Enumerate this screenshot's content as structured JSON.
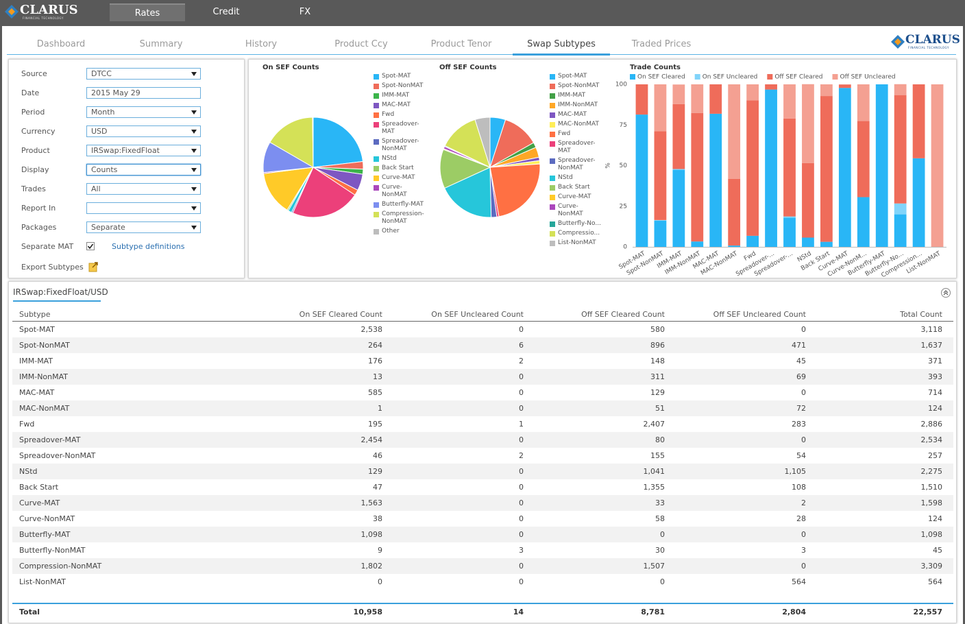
{
  "header": {
    "logo": "CLARUS",
    "logo_tagline": "FINANCIAL TECHNOLOGY",
    "nav": [
      "Rates",
      "Credit",
      "FX"
    ],
    "tabs": [
      "Dashboard",
      "Summary",
      "History",
      "Product Ccy",
      "Product Tenor",
      "Swap Subtypes",
      "Traded Prices"
    ]
  },
  "form": {
    "fields": [
      {
        "label": "Source",
        "value": "DTCC"
      },
      {
        "label": "Date",
        "value": "2015 May 29"
      },
      {
        "label": "Period",
        "value": "Month"
      },
      {
        "label": "Currency",
        "value": "USD"
      },
      {
        "label": "Product",
        "value": "IRSwap:FixedFloat"
      },
      {
        "label": "Display",
        "value": "Counts"
      },
      {
        "label": "Trades",
        "value": "All"
      },
      {
        "label": "Report In"
      },
      {
        "label": "Packages",
        "value": "Separate"
      }
    ],
    "separate_mat": "Separate MAT",
    "link": "Subtype definitions",
    "export": "Export Subtypes"
  },
  "chart_data": [
    {
      "type": "pie",
      "title": "On SEF Counts",
      "categories": [
        "Spot-MAT",
        "Spot-NonMAT",
        "IMM-MAT",
        "MAC-MAT",
        "Fwd",
        "Spreadover-MAT",
        "Spreadover-NonMAT",
        "NStd",
        "Back Start",
        "Curve-MAT",
        "Curve-NonMAT",
        "Butterfly-MAT",
        "Compression-NonMAT",
        "Other"
      ],
      "values": [
        2538,
        270,
        178,
        585,
        196,
        2454,
        48,
        129,
        47,
        1563,
        38,
        1098,
        1802,
        26
      ],
      "colors": [
        "#29b6f6",
        "#ef6c5a",
        "#3cb44b",
        "#7e57c2",
        "#ff7043",
        "#ec407a",
        "#5c6bc0",
        "#26c6da",
        "#9ccc65",
        "#ffca28",
        "#ab47bc",
        "#7c8ef0",
        "#d4e157",
        "#bdbdbd"
      ]
    },
    {
      "type": "pie",
      "title": "Off SEF Counts",
      "categories": [
        "Spot-MAT",
        "Spot-NonMAT",
        "IMM-MAT",
        "IMM-NonMAT",
        "MAC-MAT",
        "MAC-NonMAT",
        "Fwd",
        "Spreadover-MAT",
        "Spreadover-NonMAT",
        "NStd",
        "Back Start",
        "Curve-MAT",
        "Curve-NonMAT",
        "Butterfly-No...",
        "Compressio...",
        "List-NonMAT"
      ],
      "values": [
        580,
        1367,
        193,
        380,
        129,
        123,
        2690,
        80,
        209,
        2146,
        1463,
        35,
        86,
        33,
        1507,
        564
      ],
      "colors": [
        "#29b6f6",
        "#ef6c5a",
        "#43a047",
        "#ffa726",
        "#7e57c2",
        "#ffee58",
        "#ff7043",
        "#ec407a",
        "#5c6bc0",
        "#26c6da",
        "#9ccc65",
        "#ffca28",
        "#ab47bc",
        "#26a69a",
        "#d4e157",
        "#bdbdbd"
      ]
    },
    {
      "type": "bar",
      "stacked": true,
      "title": "Trade Counts",
      "ylabel": "%",
      "legend": "top",
      "grid": false,
      "categories": [
        "Spot-MAT",
        "Spot-NonMAT",
        "IMM-MAT",
        "IMM-NonMAT",
        "MAC-MAT",
        "MAC-NonMAT",
        "Fwd",
        "Spreadover-...",
        "Spreadover-...",
        "NStd",
        "Back Start",
        "Curve-MAT",
        "Curve-NonM...",
        "Butterfly-MAT",
        "Butterfly-No...",
        "Compression...",
        "List-NonMAT"
      ],
      "series": [
        {
          "name": "On SEF Cleared",
          "color": "#29b6f6",
          "values": [
            81.4,
            16.1,
            47.4,
            3.3,
            81.9,
            0.8,
            6.8,
            96.8,
            17.9,
            5.7,
            3.1,
            97.8,
            30.6,
            100,
            20,
            54.5,
            0
          ]
        },
        {
          "name": "On SEF Uncleared",
          "color": "#81d4fa",
          "values": [
            0,
            0.4,
            0.5,
            0,
            0,
            0,
            0,
            0,
            0.8,
            0,
            0,
            0,
            0,
            0,
            6.7,
            0,
            0
          ]
        },
        {
          "name": "Off SEF Cleared",
          "color": "#ef6c5a",
          "values": [
            18.6,
            54.7,
            39.9,
            79.1,
            18.1,
            41.1,
            83.4,
            3.2,
            60.3,
            45.8,
            89.7,
            2.1,
            46.8,
            0,
            66.7,
            45.5,
            0
          ]
        },
        {
          "name": "Off SEF Uncleared",
          "color": "#f4a092",
          "values": [
            0,
            28.8,
            12.1,
            17.6,
            0,
            58.1,
            9.8,
            0,
            21.0,
            48.6,
            7.2,
            0.1,
            22.6,
            0,
            6.7,
            0,
            100
          ]
        }
      ],
      "ylim": [
        0,
        100
      ],
      "yticks": [
        0,
        25,
        50,
        75,
        100
      ]
    }
  ],
  "table": {
    "title": "IRSwap:FixedFloat/USD",
    "columns": [
      "Subtype",
      "On SEF Cleared Count",
      "On SEF Uncleared Count",
      "Off SEF Cleared Count",
      "Off SEF Uncleared Count",
      "Total Count"
    ],
    "rows": [
      [
        "Spot-MAT",
        "2,538",
        "0",
        "580",
        "0",
        "3,118"
      ],
      [
        "Spot-NonMAT",
        "264",
        "6",
        "896",
        "471",
        "1,637"
      ],
      [
        "IMM-MAT",
        "176",
        "2",
        "148",
        "45",
        "371"
      ],
      [
        "IMM-NonMAT",
        "13",
        "0",
        "311",
        "69",
        "393"
      ],
      [
        "MAC-MAT",
        "585",
        "0",
        "129",
        "0",
        "714"
      ],
      [
        "MAC-NonMAT",
        "1",
        "0",
        "51",
        "72",
        "124"
      ],
      [
        "Fwd",
        "195",
        "1",
        "2,407",
        "283",
        "2,886"
      ],
      [
        "Spreadover-MAT",
        "2,454",
        "0",
        "80",
        "0",
        "2,534"
      ],
      [
        "Spreadover-NonMAT",
        "46",
        "2",
        "155",
        "54",
        "257"
      ],
      [
        "NStd",
        "129",
        "0",
        "1,041",
        "1,105",
        "2,275"
      ],
      [
        "Back Start",
        "47",
        "0",
        "1,355",
        "108",
        "1,510"
      ],
      [
        "Curve-MAT",
        "1,563",
        "0",
        "33",
        "2",
        "1,598"
      ],
      [
        "Curve-NonMAT",
        "38",
        "0",
        "58",
        "28",
        "124"
      ],
      [
        "Butterfly-MAT",
        "1,098",
        "0",
        "0",
        "0",
        "1,098"
      ],
      [
        "Butterfly-NonMAT",
        "9",
        "3",
        "30",
        "3",
        "45"
      ],
      [
        "Compression-NonMAT",
        "1,802",
        "0",
        "1,507",
        "0",
        "3,309"
      ],
      [
        "List-NonMAT",
        "0",
        "0",
        "0",
        "564",
        "564"
      ]
    ],
    "total": [
      "Total",
      "10,958",
      "14",
      "8,781",
      "2,804",
      "22,557"
    ]
  }
}
